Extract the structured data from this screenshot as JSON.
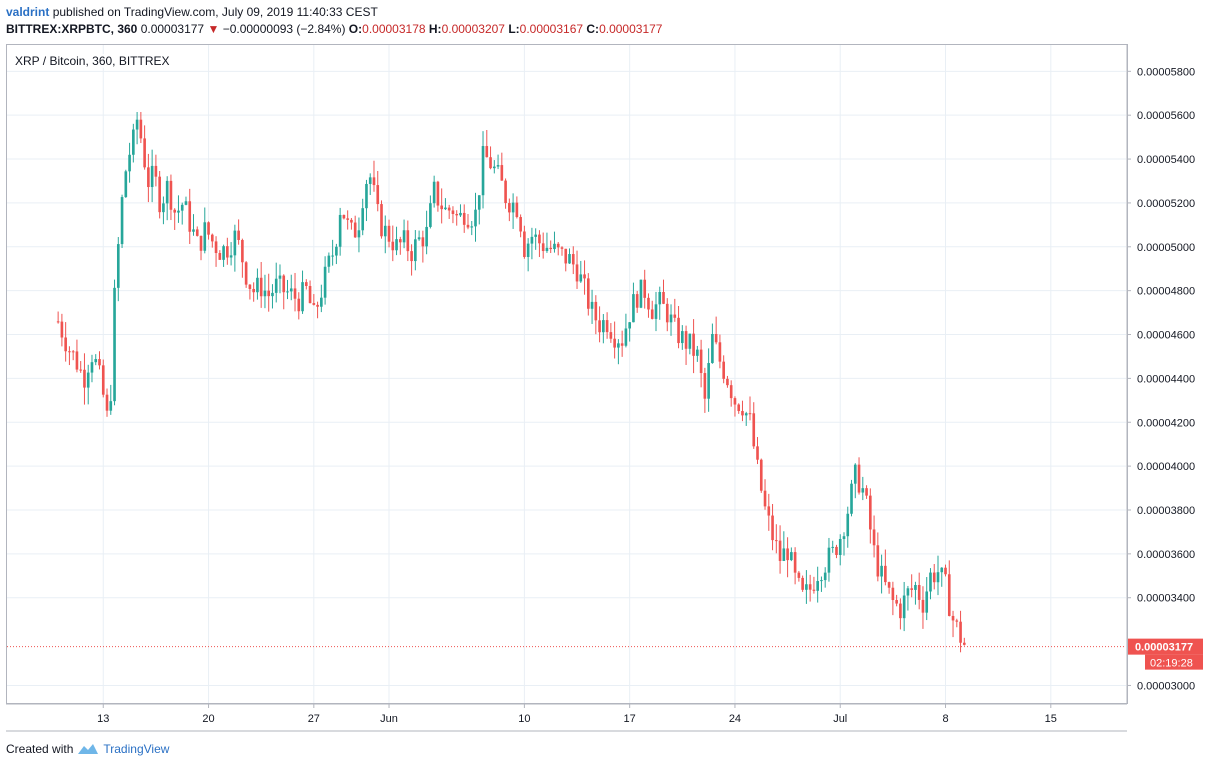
{
  "header": {
    "author": "valdrint",
    "published": "published on TradingView.com, July 09, 2019 11:40:33 CEST"
  },
  "ohlc": {
    "symbol": "BITTREX:XRPBTC, 360",
    "last": "0.00003177",
    "change": "−0.00000093 (−2.84%)",
    "o_label": "O:",
    "o": "0.00003178",
    "h_label": "H:",
    "h": "0.00003207",
    "l_label": "L:",
    "l": "0.00003167",
    "c_label": "C:",
    "c": "0.00003177"
  },
  "chart_title": "XRP / Bitcoin, 360, BITTREX",
  "footer": {
    "created": "Created with",
    "brand": "TradingView"
  },
  "colors": {
    "up": "#26a69a",
    "down": "#ef5350",
    "grid": "#e9eff5",
    "priceline": "#ef5350"
  },
  "chart_data": {
    "type": "candlestick",
    "ylim": [
      2.92e-05,
      5.92e-05
    ],
    "yticks": [
      "0.00005800",
      "0.00005600",
      "0.00005400",
      "0.00005200",
      "0.00005000",
      "0.00004800",
      "0.00004600",
      "0.00004400",
      "0.00004200",
      "0.00004000",
      "0.00003800",
      "0.00003600",
      "0.00003400",
      "0.00003000"
    ],
    "xticks": [
      {
        "label": "13",
        "day": 13
      },
      {
        "label": "20",
        "day": 20
      },
      {
        "label": "27",
        "day": 27
      },
      {
        "label": "Jun",
        "day": 32
      },
      {
        "label": "10",
        "day": 41
      },
      {
        "label": "17",
        "day": 48
      },
      {
        "label": "24",
        "day": 55
      },
      {
        "label": "Jul",
        "day": 62
      },
      {
        "label": "8",
        "day": 69
      },
      {
        "label": "15",
        "day": 76
      }
    ],
    "last_price": "0.00003177",
    "countdown": "02:19:28",
    "close_path": [
      [
        10.0,
        4.66e-05
      ],
      [
        10.7,
        4.54e-05
      ],
      [
        11.2,
        4.48e-05
      ],
      [
        11.7,
        4.4e-05
      ],
      [
        12.2,
        4.52e-05
      ],
      [
        12.6,
        4.45e-05
      ],
      [
        13.0,
        4.32e-05
      ],
      [
        13.4,
        4.16e-05
      ],
      [
        13.7,
        4.72e-05
      ],
      [
        14.0,
        5e-05
      ],
      [
        14.3,
        5.25e-05
      ],
      [
        14.6,
        5.4e-05
      ],
      [
        15.0,
        5.48e-05
      ],
      [
        15.3,
        5.6e-05
      ],
      [
        15.6,
        5.45e-05
      ],
      [
        16.0,
        5.3e-05
      ],
      [
        16.4,
        5.32e-05
      ],
      [
        16.8,
        5.2e-05
      ],
      [
        17.3,
        5.28e-05
      ],
      [
        17.8,
        5.15e-05
      ],
      [
        18.3,
        5.2e-05
      ],
      [
        18.8,
        5.1e-05
      ],
      [
        19.3,
        5e-05
      ],
      [
        19.8,
        5.08e-05
      ],
      [
        20.3,
        5.02e-05
      ],
      [
        20.8,
        4.98e-05
      ],
      [
        21.3,
        5e-05
      ],
      [
        21.8,
        5.05e-05
      ],
      [
        22.2,
        4.96e-05
      ],
      [
        22.6,
        4.85e-05
      ],
      [
        23.0,
        4.8e-05
      ],
      [
        23.5,
        4.82e-05
      ],
      [
        24.0,
        4.78e-05
      ],
      [
        24.5,
        4.82e-05
      ],
      [
        25.0,
        4.8e-05
      ],
      [
        25.5,
        4.78e-05
      ],
      [
        26.0,
        4.76e-05
      ],
      [
        26.5,
        4.8e-05
      ],
      [
        27.0,
        4.68e-05
      ],
      [
        27.5,
        4.8e-05
      ],
      [
        28.0,
        4.92e-05
      ],
      [
        28.4,
        5e-05
      ],
      [
        28.8,
        5.2e-05
      ],
      [
        29.2,
        5.1e-05
      ],
      [
        29.6,
        5.05e-05
      ],
      [
        30.0,
        5.12e-05
      ],
      [
        30.4,
        5.3e-05
      ],
      [
        30.8,
        5.32e-05
      ],
      [
        31.2,
        5.15e-05
      ],
      [
        31.6,
        5.08e-05
      ],
      [
        32.0,
        5.05e-05
      ],
      [
        32.5,
        5e-05
      ],
      [
        33.0,
        5.02e-05
      ],
      [
        33.5,
        4.98e-05
      ],
      [
        34.0,
        5.03e-05
      ],
      [
        34.5,
        5.06e-05
      ],
      [
        35.0,
        5.25e-05
      ],
      [
        35.4,
        5.2e-05
      ],
      [
        35.8,
        5.16e-05
      ],
      [
        36.2,
        5.18e-05
      ],
      [
        36.6,
        5.12e-05
      ],
      [
        37.0,
        5.16e-05
      ],
      [
        37.4,
        5.14e-05
      ],
      [
        37.8,
        5.15e-05
      ],
      [
        38.2,
        5.4e-05
      ],
      [
        38.6,
        5.4e-05
      ],
      [
        39.0,
        5.35e-05
      ],
      [
        39.4,
        5.3e-05
      ],
      [
        39.8,
        5.22e-05
      ],
      [
        40.2,
        5.2e-05
      ],
      [
        40.6,
        5.18e-05
      ],
      [
        41.0,
        5e-05
      ],
      [
        41.5,
        5.05e-05
      ],
      [
        42.0,
        5.02e-05
      ],
      [
        42.5,
        5e-05
      ],
      [
        43.0,
        4.98e-05
      ],
      [
        43.5,
        4.96e-05
      ],
      [
        44.0,
        4.94e-05
      ],
      [
        44.5,
        4.9e-05
      ],
      [
        45.0,
        4.8e-05
      ],
      [
        45.5,
        4.7e-05
      ],
      [
        46.0,
        4.65e-05
      ],
      [
        46.5,
        4.66e-05
      ],
      [
        47.0,
        4.6e-05
      ],
      [
        47.5,
        4.58e-05
      ],
      [
        48.0,
        4.7e-05
      ],
      [
        48.5,
        4.78e-05
      ],
      [
        49.0,
        4.8e-05
      ],
      [
        49.5,
        4.72e-05
      ],
      [
        50.0,
        4.74e-05
      ],
      [
        50.5,
        4.7e-05
      ],
      [
        51.0,
        4.62e-05
      ],
      [
        51.5,
        4.58e-05
      ],
      [
        52.0,
        4.55e-05
      ],
      [
        52.5,
        4.5e-05
      ],
      [
        53.0,
        4.3e-05
      ],
      [
        53.5,
        4.58e-05
      ],
      [
        54.0,
        4.48e-05
      ],
      [
        54.5,
        4.4e-05
      ],
      [
        55.0,
        4.3e-05
      ],
      [
        55.5,
        4.28e-05
      ],
      [
        56.0,
        4.2e-05
      ],
      [
        56.5,
        3.98e-05
      ],
      [
        57.0,
        3.8e-05
      ],
      [
        57.5,
        3.68e-05
      ],
      [
        58.0,
        3.58e-05
      ],
      [
        58.5,
        3.62e-05
      ],
      [
        59.0,
        3.48e-05
      ],
      [
        59.5,
        3.4e-05
      ],
      [
        60.0,
        3.44e-05
      ],
      [
        60.5,
        3.52e-05
      ],
      [
        61.0,
        3.56e-05
      ],
      [
        61.5,
        3.6e-05
      ],
      [
        62.0,
        3.68e-05
      ],
      [
        62.5,
        3.8e-05
      ],
      [
        63.0,
        3.95e-05
      ],
      [
        63.4,
        3.92e-05
      ],
      [
        63.8,
        3.8e-05
      ],
      [
        64.2,
        3.62e-05
      ],
      [
        64.6,
        3.52e-05
      ],
      [
        65.0,
        3.45e-05
      ],
      [
        65.5,
        3.38e-05
      ],
      [
        66.0,
        3.35e-05
      ],
      [
        66.5,
        3.42e-05
      ],
      [
        67.0,
        3.45e-05
      ],
      [
        67.5,
        3.38e-05
      ],
      [
        68.0,
        3.5e-05
      ],
      [
        68.5,
        3.52e-05
      ],
      [
        69.0,
        3.45e-05
      ],
      [
        69.5,
        3.3e-05
      ],
      [
        70.0,
        3.22e-05
      ],
      [
        70.3,
        3.18e-05
      ]
    ]
  }
}
